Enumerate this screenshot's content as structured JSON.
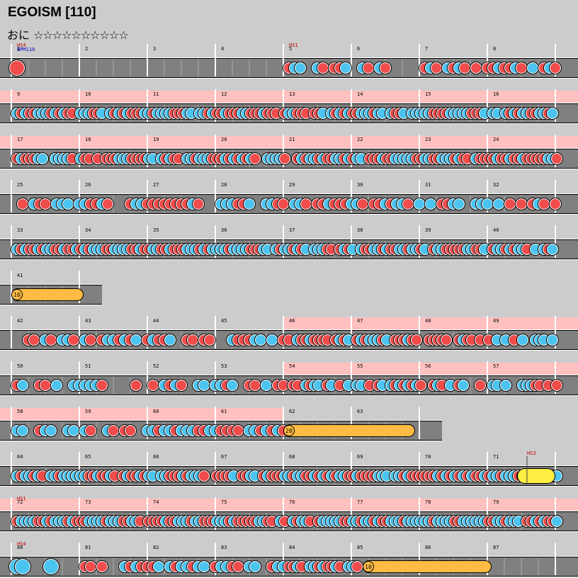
{
  "title": "EGOISM [110]",
  "difficulty": {
    "name": "おに",
    "stars": "☆☆☆☆☆☆☆☆☆☆"
  },
  "colors": {
    "background": "#cccccc",
    "lane": "#808080",
    "lane_edge": "#000000",
    "gogo": "#ffc0c0",
    "don": "#f04c4c",
    "ka": "#4cc4f0",
    "roll": "#ffbb44",
    "balloon_roll": "#ffee44",
    "marker_red": "#c00000",
    "marker_blue": "#0000c0"
  },
  "markers": [
    {
      "text": "HS4",
      "color": "red"
    },
    {
      "text": "BPM110",
      "color": "blue"
    },
    {
      "text": "HS1",
      "color": "red"
    },
    {
      "text": "HS3",
      "color": "red"
    },
    {
      "text": "HS1",
      "color": "red"
    },
    {
      "text": "HS4",
      "color": "red"
    }
  ],
  "rolls": [
    {
      "label": "10",
      "measure": 41
    },
    {
      "label": "20",
      "measure": 62
    },
    {
      "label": "10",
      "measure": 85
    }
  ],
  "rows": [
    {
      "measures": [
        "1",
        "2",
        "3",
        "4",
        "5",
        "6",
        "7",
        "8"
      ],
      "gogo": false
    },
    {
      "measures": [
        "9",
        "10",
        "11",
        "12",
        "13",
        "14",
        "15",
        "16"
      ],
      "gogo": true
    },
    {
      "measures": [
        "17",
        "18",
        "19",
        "20",
        "21",
        "22",
        "23",
        "24"
      ],
      "gogo": true
    },
    {
      "measures": [
        "25",
        "26",
        "27",
        "28",
        "29",
        "30",
        "31",
        "32"
      ],
      "gogo": false
    },
    {
      "measures": [
        "33",
        "34",
        "35",
        "36",
        "37",
        "38",
        "39",
        "40"
      ],
      "gogo": false
    },
    {
      "measures": [
        "41"
      ],
      "gogo": false
    },
    {
      "measures": [
        "42",
        "43",
        "44",
        "45",
        "46",
        "47",
        "48",
        "49"
      ],
      "gogo": "from-46"
    },
    {
      "measures": [
        "50",
        "51",
        "52",
        "53",
        "54",
        "55",
        "56",
        "57"
      ],
      "gogo": "from-54"
    },
    {
      "measures": [
        "58",
        "59",
        "60",
        "61",
        "62",
        "63"
      ],
      "gogo": "until-62"
    },
    {
      "measures": [
        "64",
        "65",
        "66",
        "67",
        "68",
        "69",
        "70",
        "71"
      ],
      "gogo": false
    },
    {
      "measures": [
        "72",
        "73",
        "74",
        "75",
        "76",
        "77",
        "78",
        "79"
      ],
      "gogo": true
    },
    {
      "measures": [
        "80",
        "81",
        "82",
        "83",
        "84",
        "85",
        "86",
        "87"
      ],
      "gogo": false
    }
  ]
}
